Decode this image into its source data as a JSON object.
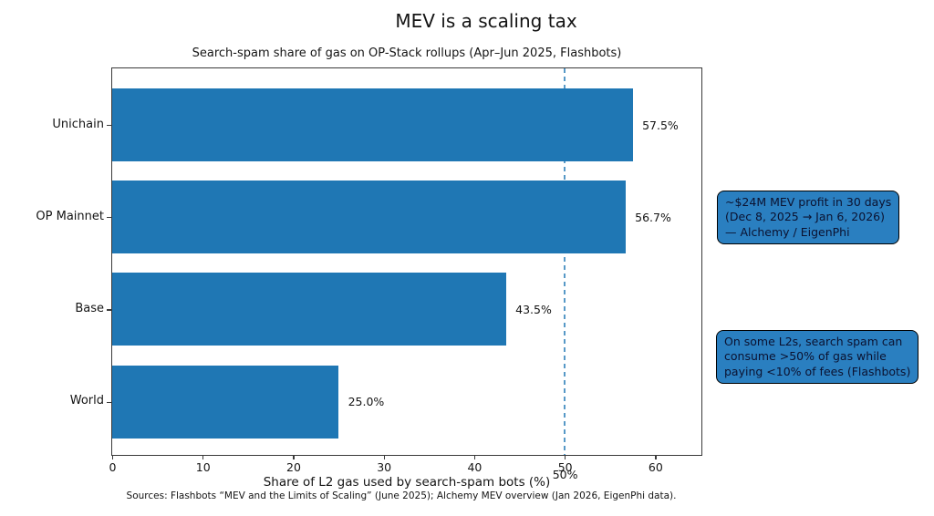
{
  "chart_data": {
    "type": "bar",
    "orientation": "horizontal",
    "title": "MEV is a scaling tax",
    "subtitle": "Search-spam share of gas on OP-Stack rollups (Apr–Jun 2025, Flashbots)",
    "categories": [
      "Unichain",
      "OP Mainnet",
      "Base",
      "World"
    ],
    "values": [
      57.5,
      56.7,
      43.5,
      25.0
    ],
    "value_labels": [
      "57.5%",
      "56.7%",
      "43.5%",
      "25.0%"
    ],
    "xlabel": "Share of L2 gas used by search-spam bots (%)",
    "xlim": [
      0,
      65
    ],
    "xticks": [
      0,
      10,
      20,
      30,
      40,
      50,
      60
    ],
    "grid": false,
    "legend": "none",
    "bar_color": "#1f77b4",
    "reference_line": {
      "x": 50,
      "label": "50%",
      "style": "dashed",
      "color": "#4e8cba"
    },
    "annotations": [
      {
        "lines": [
          "~$24M MEV profit in 30 days",
          "(Dec 8, 2025 → Jan 6, 2026)",
          "— Alchemy / EigenPhi"
        ],
        "fill": "#2a7fc0",
        "border": "#000000"
      },
      {
        "lines": [
          "On some L2s, search spam can",
          "consume >50% of gas while",
          "paying <10% of fees (Flashbots)"
        ],
        "fill": "#2a7fc0",
        "border": "#000000"
      }
    ],
    "source": "Sources: Flashbots “MEV and the Limits of Scaling” (June 2025); Alchemy MEV overview (Jan 2026, EigenPhi data)."
  }
}
